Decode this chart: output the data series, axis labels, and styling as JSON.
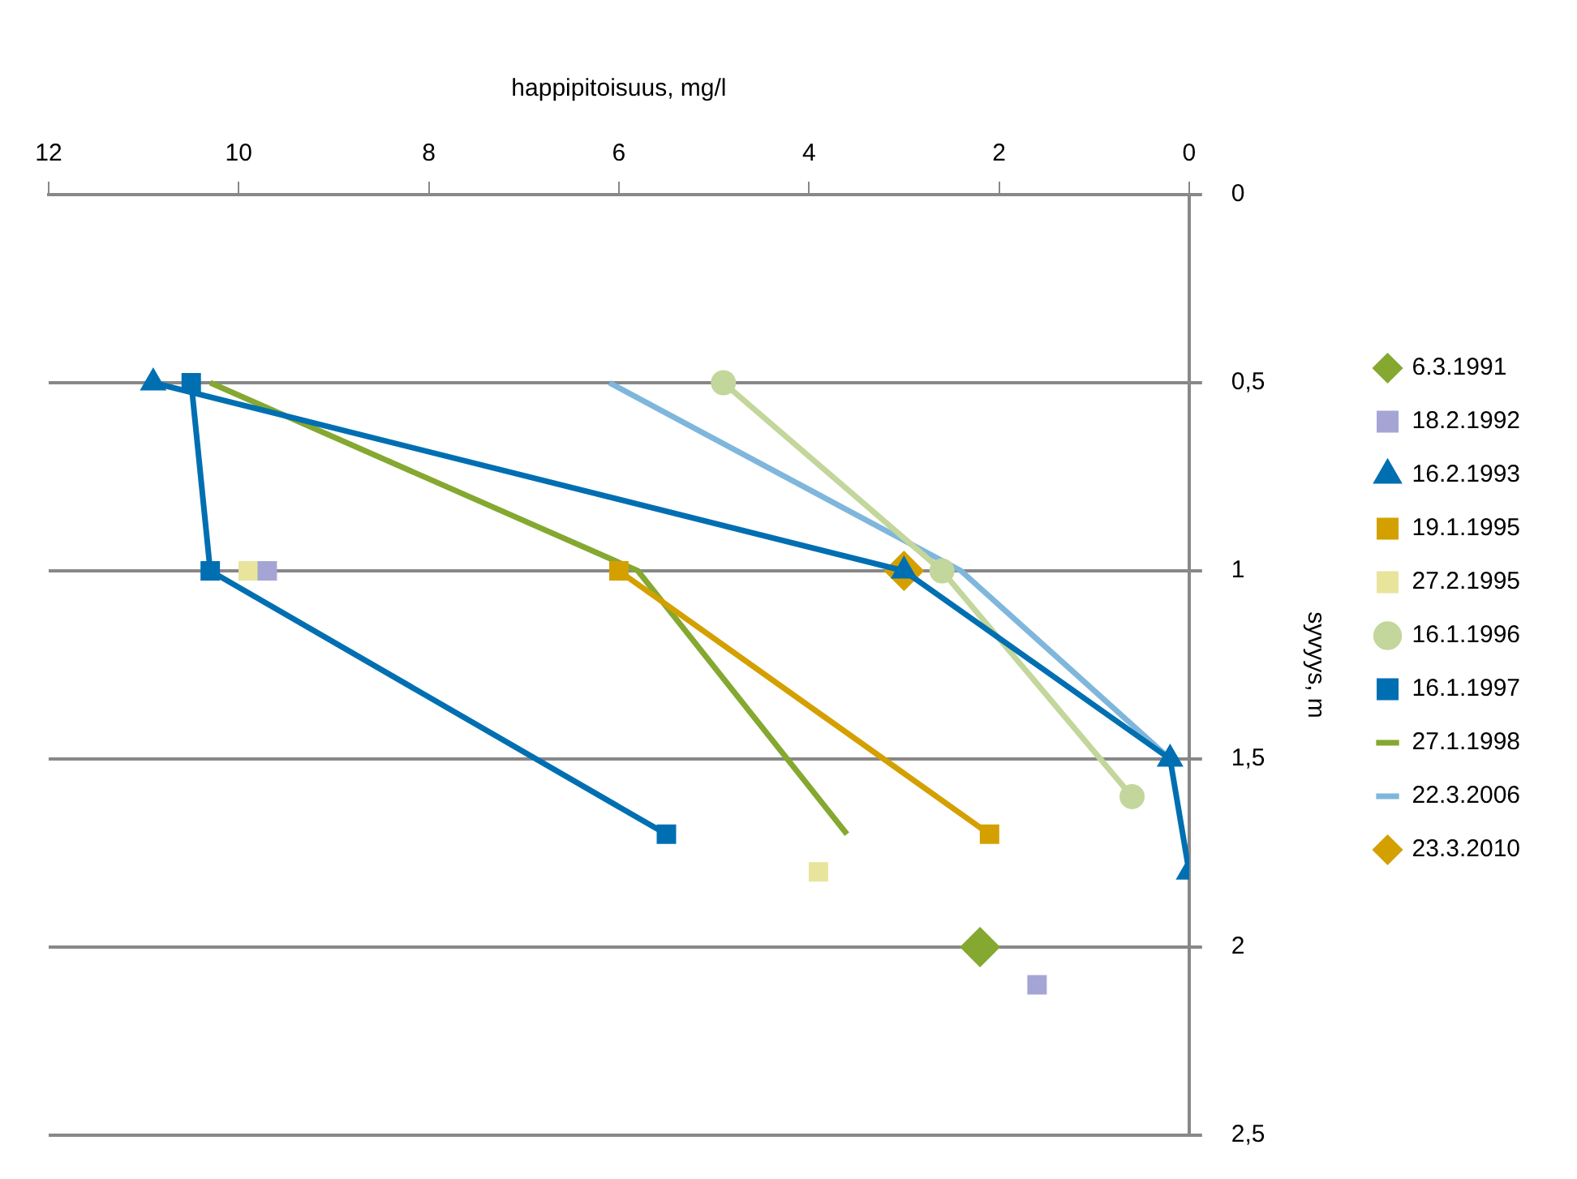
{
  "chart_data": {
    "type": "line",
    "xlabel": "happipitoisuus, mg/l",
    "ylabel": "syvyys, m",
    "xlim": [
      12,
      0
    ],
    "xticks": [
      12,
      10,
      8,
      6,
      4,
      2,
      0
    ],
    "ylim": [
      2.5,
      0
    ],
    "yticks": [
      0,
      {
        "value": 0.5,
        "label": "0,5"
      },
      1,
      {
        "value": 1.5,
        "label": "1,5"
      },
      2,
      {
        "value": 2.5,
        "label": "2,5"
      }
    ],
    "grid": "y",
    "legend": "right",
    "series": [
      {
        "name": "6.3.1991",
        "type": "scatter",
        "marker": "diamond",
        "color": "#84a830",
        "x": [
          2.2
        ],
        "values": [
          2
        ]
      },
      {
        "name": "18.2.1992",
        "type": "scatter",
        "marker": "square",
        "color": "#a5a5d5",
        "x": [
          9.7,
          1.6
        ],
        "values": [
          1,
          2.1
        ]
      },
      {
        "name": "16.2.1993",
        "type": "line",
        "marker": "triangle",
        "color": "#006fb2",
        "x": [
          10.9,
          3,
          0.2,
          0
        ],
        "values": [
          0.5,
          1,
          1.5,
          1.8
        ]
      },
      {
        "name": "19.1.1995",
        "type": "line",
        "marker": "square",
        "color": "#d4a000",
        "x": [
          6,
          2.1
        ],
        "values": [
          1,
          1.7
        ]
      },
      {
        "name": "27.2.1995",
        "type": "scatter",
        "marker": "square",
        "color": "#e8e49c",
        "x": [
          9.9,
          3.9
        ],
        "values": [
          1,
          1.8
        ]
      },
      {
        "name": "16.1.1996",
        "type": "line",
        "marker": "circle",
        "color": "#c3d69b",
        "x": [
          4.9,
          2.6,
          0.6
        ],
        "values": [
          0.5,
          1,
          1.6
        ]
      },
      {
        "name": "16.1.1997",
        "type": "line",
        "marker": "square",
        "color": "#006fb2",
        "x": [
          10.5,
          10.3,
          5.5
        ],
        "values": [
          0.5,
          1,
          1.7
        ]
      },
      {
        "name": "27.1.1998",
        "type": "line",
        "marker": "none",
        "color": "#84a830",
        "x": [
          10.3,
          5.8,
          3.6
        ],
        "values": [
          0.5,
          1,
          1.7
        ]
      },
      {
        "name": "22.3.2006",
        "type": "line",
        "marker": "none",
        "color": "#7fb6dc",
        "x": [
          6.1,
          2.4,
          0.2
        ],
        "values": [
          0.5,
          1,
          1.5
        ]
      },
      {
        "name": "23.3.2010",
        "type": "scatter",
        "marker": "diamond",
        "color": "#d4a000",
        "x": [
          3
        ],
        "values": [
          1
        ]
      }
    ]
  }
}
